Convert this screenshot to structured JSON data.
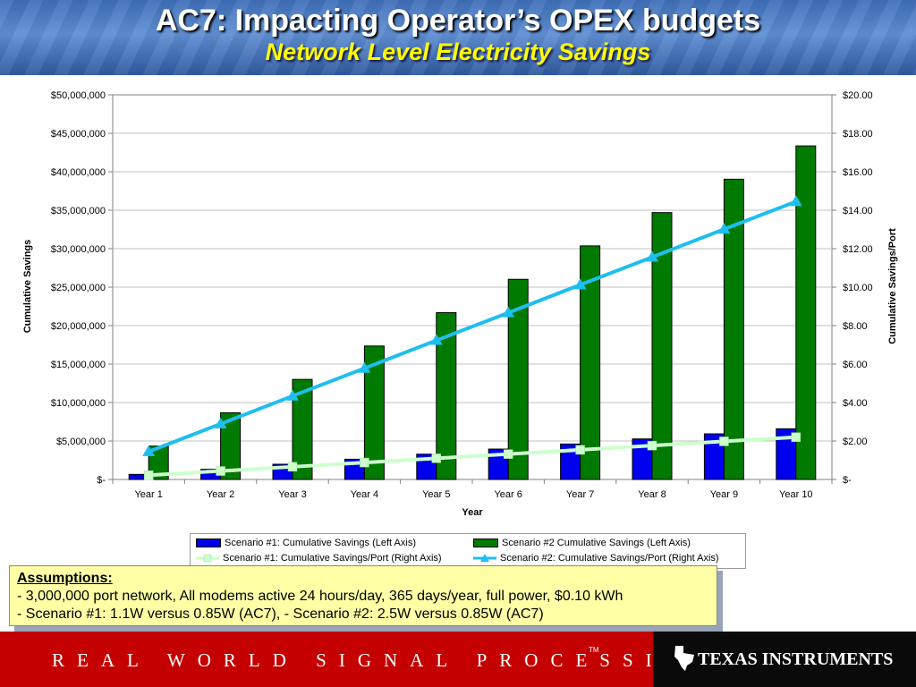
{
  "slide": {
    "title": "AC7: Impacting Operator’s OPEX budgets",
    "subtitle": "Network Level Electricity Savings"
  },
  "chart_data": {
    "type": "bar",
    "categories": [
      "Year 1",
      "Year 2",
      "Year 3",
      "Year 4",
      "Year 5",
      "Year 6",
      "Year 7",
      "Year 8",
      "Year 9",
      "Year 10"
    ],
    "xlabel": "Year",
    "ylabel": "Cumulative Savings",
    "y2label": "Cumulative Savings/Port",
    "ylim": [
      0,
      50000000
    ],
    "y2lim": [
      0,
      20
    ],
    "yticks": [
      "$-",
      "$5,000,000",
      "$10,000,000",
      "$15,000,000",
      "$20,000,000",
      "$25,000,000",
      "$30,000,000",
      "$35,000,000",
      "$40,000,000",
      "$45,000,000",
      "$50,000,000"
    ],
    "y2ticks": [
      "$-",
      "$2.00",
      "$4.00",
      "$6.00",
      "$8.00",
      "$10.00",
      "$12.00",
      "$14.00",
      "$16.00",
      "$18.00",
      "$20.00"
    ],
    "grid": true,
    "legend_position": "bottom",
    "series": [
      {
        "name": "Scenario #1:  Cumulative Savings (Left Axis)",
        "kind": "bar",
        "axis": "left",
        "color": "#0000ee",
        "values": [
          660000,
          1320000,
          1980000,
          2630000,
          3290000,
          3950000,
          4610000,
          5270000,
          5930000,
          6590000
        ]
      },
      {
        "name": "Scenario #2 Cumulative Savings (Left Axis)",
        "kind": "bar",
        "axis": "left",
        "color": "#007a00",
        "values": [
          4340000,
          8670000,
          13010000,
          17350000,
          21680000,
          26020000,
          30360000,
          34690000,
          39030000,
          43360000
        ]
      },
      {
        "name": "Scenario #1: Cumulative Savings/Port  (Right Axis)",
        "kind": "line",
        "axis": "right",
        "color": "#ccffcc",
        "marker": "square",
        "values": [
          0.22,
          0.44,
          0.66,
          0.88,
          1.1,
          1.32,
          1.54,
          1.76,
          1.98,
          2.2
        ]
      },
      {
        "name": "Scenario #2: Cumulative Savings/Port (Right Axis)",
        "kind": "line",
        "axis": "right",
        "color": "#1ebef0",
        "marker": "triangle",
        "values": [
          1.45,
          2.89,
          4.34,
          5.78,
          7.23,
          8.67,
          10.12,
          11.56,
          13.01,
          14.45
        ]
      }
    ]
  },
  "assumptions": {
    "heading": "Assumptions:",
    "line1": "- 3,000,000 port network, All modems active 24 hours/day, 365 days/year, full power, $0.10 kWh",
    "line2": "- Scenario #1:  1.1W versus 0.85W (AC7), - Scenario #2:  2.5W versus 0.85W (AC7)"
  },
  "footer": {
    "tagline": "REAL WORLD SIGNAL PROCESSING",
    "trademark": "TM",
    "brand": "TEXAS INSTRUMENTS"
  }
}
